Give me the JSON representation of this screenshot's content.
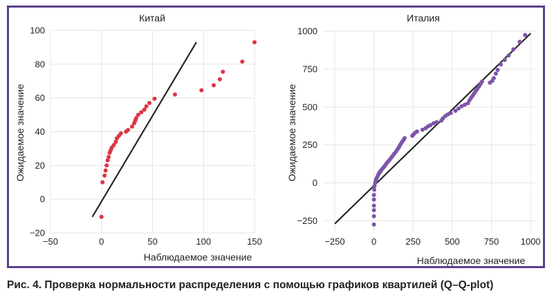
{
  "caption": "Рис. 4. Проверка нормальности распределения с помощью графиков квартилей (Q–Q-plot)",
  "colors": {
    "frame": "#5b3f8c",
    "line": "#262626",
    "grid": "#e4e4e4"
  },
  "chart_data": [
    {
      "type": "scatter",
      "title": "Китай",
      "xlabel": "Наблюдаемое значение",
      "ylabel": "Ожидаемое значение",
      "xlim": [
        -50,
        150
      ],
      "ylim": [
        -20,
        100
      ],
      "xticks": [
        -50,
        0,
        50,
        100,
        150
      ],
      "yticks": [
        -20,
        0,
        20,
        40,
        60,
        80,
        100
      ],
      "xtick_labels": [
        "−50",
        "0",
        "50",
        "100",
        "150"
      ],
      "ytick_labels": [
        "−20",
        "0",
        "20",
        "40",
        "60",
        "80",
        "100"
      ],
      "grid": true,
      "marker_color": "#dc3545",
      "reference_line": {
        "x": [
          -9,
          93
        ],
        "y": [
          -10.5,
          93
        ]
      },
      "points": [
        [
          0,
          -10.5
        ],
        [
          1,
          10
        ],
        [
          3,
          14
        ],
        [
          4,
          17
        ],
        [
          5,
          20
        ],
        [
          6,
          23
        ],
        [
          7,
          25
        ],
        [
          8,
          27.5
        ],
        [
          9,
          29
        ],
        [
          10,
          30.5
        ],
        [
          12,
          32
        ],
        [
          14,
          34
        ],
        [
          15,
          36
        ],
        [
          17,
          37.5
        ],
        [
          19,
          39
        ],
        [
          24,
          40
        ],
        [
          26,
          41
        ],
        [
          30,
          43
        ],
        [
          32,
          45
        ],
        [
          33,
          46.5
        ],
        [
          34,
          48
        ],
        [
          36,
          50
        ],
        [
          39,
          51.5
        ],
        [
          42,
          53
        ],
        [
          44,
          55
        ],
        [
          47,
          57
        ],
        [
          52,
          59.5
        ],
        [
          72,
          62
        ],
        [
          98,
          64.5
        ],
        [
          110,
          67.5
        ],
        [
          116,
          71
        ],
        [
          119,
          75.5
        ],
        [
          138,
          81.5
        ],
        [
          152,
          93
        ]
      ]
    },
    {
      "type": "scatter",
      "title": "Италия",
      "xlabel": "Наблюдаемое значение",
      "ylabel": "Ожидаемое значение",
      "xlim": [
        -325,
        1030
      ],
      "ylim": [
        -330,
        1005
      ],
      "xticks": [
        -250,
        0,
        250,
        500,
        750,
        1000
      ],
      "yticks": [
        -250,
        0,
        250,
        500,
        750,
        1000
      ],
      "xtick_labels": [
        "−250",
        "0",
        "250",
        "500",
        "750",
        "1000"
      ],
      "ytick_labels": [
        "−250",
        "0",
        "250",
        "500",
        "750",
        "1000"
      ],
      "grid": true,
      "marker_color": "#7d55a8",
      "reference_line": {
        "x": [
          -250,
          1000
        ],
        "y": [
          -270,
          985
        ]
      },
      "points": [
        [
          0,
          -275
        ],
        [
          0,
          -220
        ],
        [
          0,
          -180
        ],
        [
          0,
          -150
        ],
        [
          0,
          -110
        ],
        [
          0,
          -80
        ],
        [
          2,
          -45
        ],
        [
          4,
          -20
        ],
        [
          8,
          0
        ],
        [
          12,
          15
        ],
        [
          16,
          28
        ],
        [
          22,
          40
        ],
        [
          28,
          55
        ],
        [
          34,
          65
        ],
        [
          40,
          75
        ],
        [
          48,
          85
        ],
        [
          56,
          95
        ],
        [
          64,
          105
        ],
        [
          72,
          115
        ],
        [
          80,
          128
        ],
        [
          90,
          140
        ],
        [
          100,
          152
        ],
        [
          110,
          165
        ],
        [
          120,
          178
        ],
        [
          130,
          192
        ],
        [
          140,
          205
        ],
        [
          150,
          220
        ],
        [
          158,
          232
        ],
        [
          165,
          245
        ],
        [
          172,
          258
        ],
        [
          180,
          270
        ],
        [
          188,
          282
        ],
        [
          196,
          295
        ],
        [
          245,
          310
        ],
        [
          252,
          318
        ],
        [
          262,
          330
        ],
        [
          275,
          338
        ],
        [
          310,
          350
        ],
        [
          330,
          360
        ],
        [
          345,
          372
        ],
        [
          360,
          380
        ],
        [
          380,
          392
        ],
        [
          400,
          400
        ],
        [
          430,
          410
        ],
        [
          440,
          425
        ],
        [
          455,
          440
        ],
        [
          470,
          450
        ],
        [
          490,
          460
        ],
        [
          520,
          475
        ],
        [
          540,
          490
        ],
        [
          560,
          505
        ],
        [
          580,
          515
        ],
        [
          600,
          525
        ],
        [
          610,
          545
        ],
        [
          620,
          560
        ],
        [
          630,
          575
        ],
        [
          640,
          590
        ],
        [
          650,
          605
        ],
        [
          660,
          620
        ],
        [
          670,
          635
        ],
        [
          680,
          650
        ],
        [
          690,
          668
        ],
        [
          740,
          660
        ],
        [
          755,
          672
        ],
        [
          765,
          690
        ],
        [
          778,
          720
        ],
        [
          790,
          745
        ],
        [
          810,
          780
        ],
        [
          835,
          810
        ],
        [
          860,
          840
        ],
        [
          890,
          880
        ],
        [
          930,
          930
        ],
        [
          965,
          975
        ]
      ]
    }
  ]
}
